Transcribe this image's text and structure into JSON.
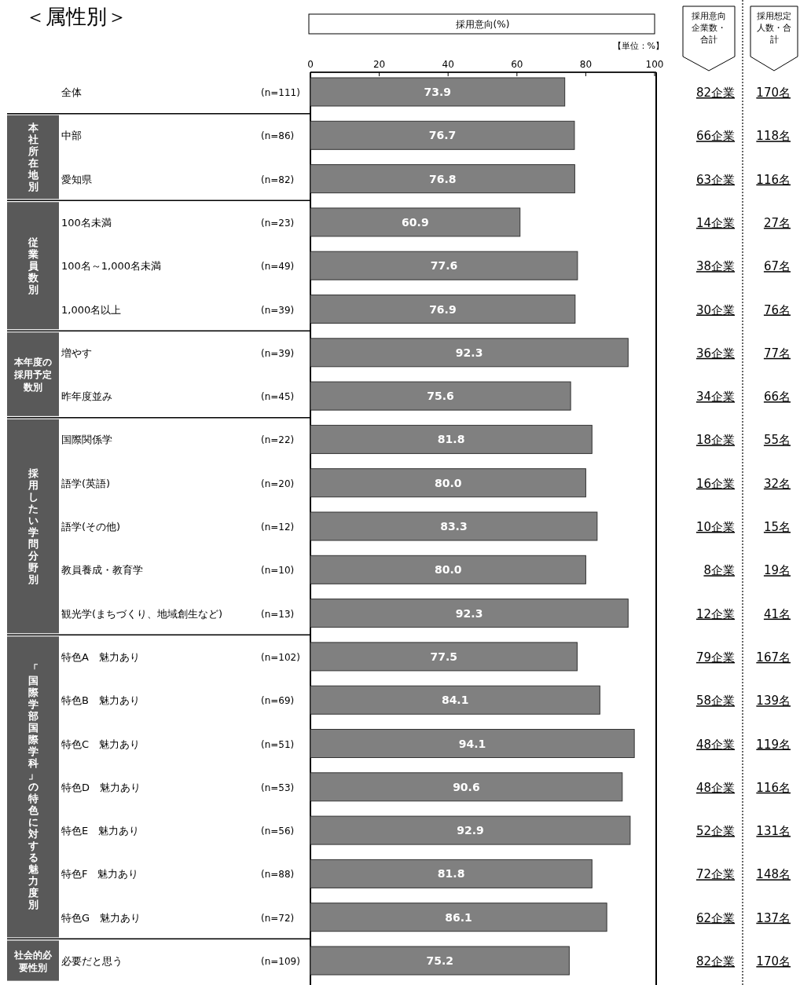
{
  "chart_data": {
    "type": "bar",
    "orientation": "horizontal",
    "title": "＜属性別＞",
    "categories": [
      "全体",
      "中部",
      "愛知県",
      "100名未満",
      "100名～1,000名未満",
      "1,000名以上",
      "増やす",
      "昨年度並み",
      "国際関係学",
      "語学(英語)",
      "語学(その他)",
      "教員養成・教育学",
      "観光学(まちづくり、地域創生など)",
      "特色A　魅力あり",
      "特色B　魅力あり",
      "特色C　魅力あり",
      "特色D　魅力あり",
      "特色E　魅力あり",
      "特色F　魅力あり",
      "特色G　魅力あり",
      "必要だと思う"
    ],
    "values": [
      73.9,
      76.7,
      76.8,
      60.9,
      77.6,
      76.9,
      92.3,
      75.6,
      81.8,
      80.0,
      83.3,
      80.0,
      92.3,
      77.5,
      84.1,
      94.1,
      90.6,
      92.9,
      81.8,
      86.1,
      75.2
    ],
    "value_labels": [
      "73.9",
      "76.7",
      "76.8",
      "60.9",
      "77.6",
      "76.9",
      "92.3",
      "75.6",
      "81.8",
      "80.0",
      "83.3",
      "80.0",
      "92.3",
      "77.5",
      "84.1",
      "94.1",
      "90.6",
      "92.9",
      "81.8",
      "86.1",
      "75.2"
    ],
    "color": "#808080",
    "x2lim": [
      0,
      100
    ],
    "x2ticks": [
      0,
      20,
      40,
      60,
      80,
      100
    ],
    "grid": false,
    "annotations": [
      "採用意向(%)",
      "【単位：%】",
      "採用意向企業数・合計",
      "採用想定人数・合計",
      "本社所在地別",
      "従業員数別",
      "本年度の採用予定数別",
      "採用したい学問分野別",
      "「国際学部国際学科」の特色に対する魅力度別",
      "社会的必要性別",
      "(n=111)",
      "(n=86)",
      "(n=82)",
      "(n=23)",
      "(n=49)",
      "(n=39)",
      "(n=39)",
      "(n=45)",
      "(n=22)",
      "(n=20)",
      "(n=12)",
      "(n=10)",
      "(n=13)",
      "(n=102)",
      "(n=69)",
      "(n=51)",
      "(n=53)",
      "(n=56)",
      "(n=88)",
      "(n=72)",
      "(n=109)",
      "82企業",
      "66企業",
      "63企業",
      "14企業",
      "38企業",
      "30企業",
      "36企業",
      "34企業",
      "18企業",
      "16企業",
      "10企業",
      "8企業",
      "12企業",
      "79企業",
      "58企業",
      "48企業",
      "48企業",
      "52企業",
      "72企業",
      "62企業",
      "82企業",
      "170名",
      "118名",
      "116名",
      "27名",
      "67名",
      "76名",
      "77名",
      "66名",
      "55名",
      "32名",
      "15名",
      "19名",
      "41名",
      "167名",
      "139名",
      "119名",
      "116名",
      "131名",
      "148名",
      "137名",
      "170名"
    ]
  }
}
